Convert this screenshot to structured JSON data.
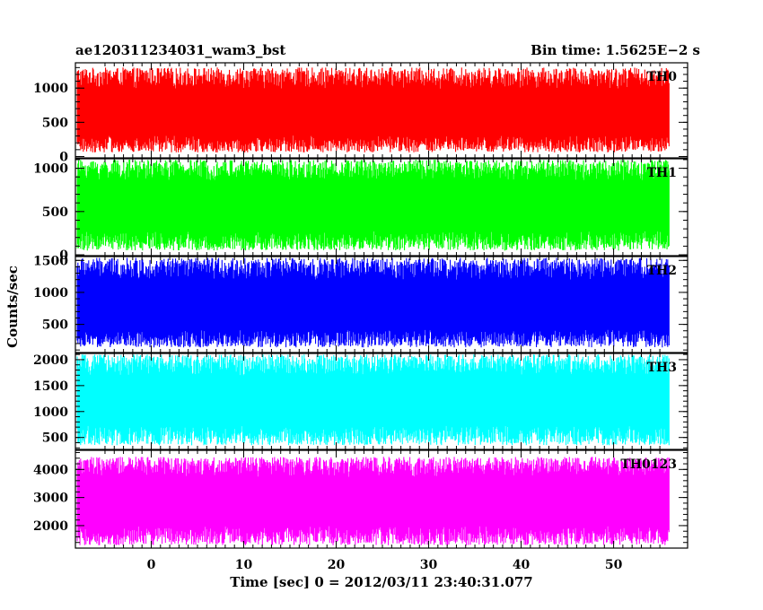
{
  "chart_data": {
    "type": "line",
    "title": "ae120311234031_wam3_bst",
    "subtitle": "Bin time: 1.5625E−2 s",
    "xlabel": "Time [sec] 0 = 2012/03/11 23:40:31.077",
    "ylabel": "Counts/sec",
    "xlim": [
      -8.2,
      58
    ],
    "x_data_range": [
      -8,
      56
    ],
    "xticks": [
      0,
      10,
      20,
      30,
      40,
      50
    ],
    "x_tick_labels": [
      "0",
      "10",
      "20",
      "30",
      "40",
      "50"
    ],
    "grid": false,
    "panels": [
      {
        "name": "TH0",
        "color": "#ff0000",
        "ylim": [
          -20,
          1370
        ],
        "yticks": [
          0,
          500,
          1000
        ],
        "y_tick_labels": [
          "0",
          "500",
          "1000"
        ],
        "mean": 610,
        "low": 60,
        "high": 1300
      },
      {
        "name": "TH1",
        "color": "#00ff00",
        "ylim": [
          -10,
          1110
        ],
        "yticks": [
          0,
          500,
          1000
        ],
        "y_tick_labels": [
          "0",
          "500",
          "1000"
        ],
        "mean": 560,
        "low": 50,
        "high": 1100
      },
      {
        "name": "TH2",
        "color": "#0000ff",
        "ylim": [
          60,
          1560
        ],
        "yticks": [
          500,
          1000,
          1500
        ],
        "y_tick_labels": [
          "500",
          "1000",
          "1500"
        ],
        "mean": 760,
        "low": 140,
        "high": 1540
      },
      {
        "name": "TH3",
        "color": "#00ffff",
        "ylim": [
          270,
          2120
        ],
        "yticks": [
          500,
          1000,
          1500,
          2000
        ],
        "y_tick_labels": [
          "500",
          "1000",
          "1500",
          "2000"
        ],
        "mean": 1190,
        "low": 350,
        "high": 2100
      },
      {
        "name": "TH0123",
        "color": "#ff00ff",
        "ylim": [
          1200,
          4680
        ],
        "yticks": [
          2000,
          3000,
          4000
        ],
        "y_tick_labels": [
          "2000",
          "3000",
          "4000"
        ],
        "mean": 2850,
        "low": 1300,
        "high": 4450
      }
    ]
  }
}
